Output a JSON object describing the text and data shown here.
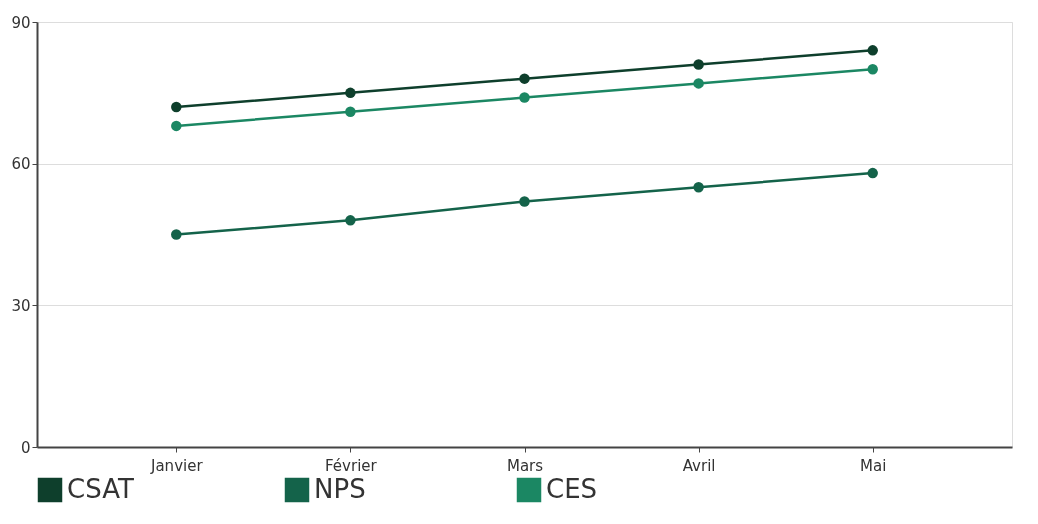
{
  "chart_data": {
    "type": "line",
    "categories": [
      "Janvier",
      "Février",
      "Mars",
      "Avril",
      "Mai"
    ],
    "series": [
      {
        "name": "CSAT",
        "color": "#0e3f2c",
        "values": [
          72,
          75,
          78,
          81,
          84
        ]
      },
      {
        "name": "NPS",
        "color": "#14634a",
        "values": [
          45,
          48,
          52,
          55,
          58
        ]
      },
      {
        "name": "CES",
        "color": "#1b8763",
        "values": [
          68,
          71,
          74,
          77,
          80
        ]
      }
    ],
    "ylim": [
      0,
      90
    ],
    "yticks": [
      0,
      30,
      60,
      90
    ],
    "grid": "y",
    "legend": "bottom",
    "marker": "circle",
    "line_style": "solid"
  }
}
